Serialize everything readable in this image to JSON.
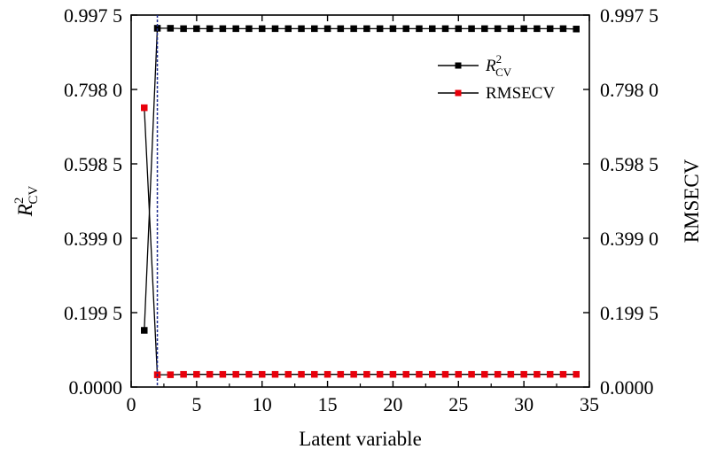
{
  "chart_data": {
    "type": "line",
    "xlabel": "Latent variable",
    "ylabel_left": {
      "base": "R",
      "sup": "2",
      "sub": "CV"
    },
    "ylabel_right": "RMSECV",
    "xlim": [
      0,
      35
    ],
    "ylim": [
      0,
      0.9975
    ],
    "x_ticks": [
      0,
      5,
      10,
      15,
      20,
      25,
      30,
      35
    ],
    "x_tick_labels": [
      "0",
      "5",
      "10",
      "15",
      "20",
      "25",
      "30",
      "35"
    ],
    "y_ticks": [
      0,
      0.1995,
      0.399,
      0.5985,
      0.798,
      0.9975
    ],
    "y_tick_labels": [
      "0.0000",
      "0.199 5",
      "0.399 0",
      "0.598 5",
      "0.798 0",
      "0.997 5"
    ],
    "right_y_tick_labels": [
      "0.0000",
      "0.199 5",
      "0.399 0",
      "0.598 5",
      "0.798 0",
      "0.997 5"
    ],
    "vline_x": 2,
    "x": [
      1,
      2,
      3,
      4,
      5,
      6,
      7,
      8,
      9,
      10,
      11,
      12,
      13,
      14,
      15,
      16,
      17,
      18,
      19,
      20,
      21,
      22,
      23,
      24,
      25,
      26,
      27,
      28,
      29,
      30,
      31,
      32,
      33,
      34
    ],
    "series": [
      {
        "name": "R2CV",
        "legend": {
          "base": "R",
          "sup": "2",
          "sub": "CV"
        },
        "color": "#000000",
        "values": [
          0.152,
          0.962,
          0.962,
          0.961,
          0.961,
          0.961,
          0.961,
          0.961,
          0.961,
          0.961,
          0.961,
          0.961,
          0.961,
          0.961,
          0.961,
          0.961,
          0.961,
          0.961,
          0.961,
          0.961,
          0.961,
          0.961,
          0.961,
          0.961,
          0.961,
          0.961,
          0.961,
          0.961,
          0.961,
          0.961,
          0.961,
          0.961,
          0.961,
          0.96
        ]
      },
      {
        "name": "RMSECV",
        "legend": {
          "text": "RMSECV"
        },
        "color": "#e8000b",
        "values": [
          0.749,
          0.033,
          0.033,
          0.034,
          0.034,
          0.034,
          0.034,
          0.034,
          0.034,
          0.034,
          0.034,
          0.034,
          0.034,
          0.034,
          0.034,
          0.034,
          0.034,
          0.034,
          0.034,
          0.034,
          0.034,
          0.034,
          0.034,
          0.034,
          0.034,
          0.034,
          0.034,
          0.034,
          0.034,
          0.034,
          0.034,
          0.034,
          0.034,
          0.034
        ]
      }
    ],
    "legend_position": "top-right",
    "grid": false
  }
}
